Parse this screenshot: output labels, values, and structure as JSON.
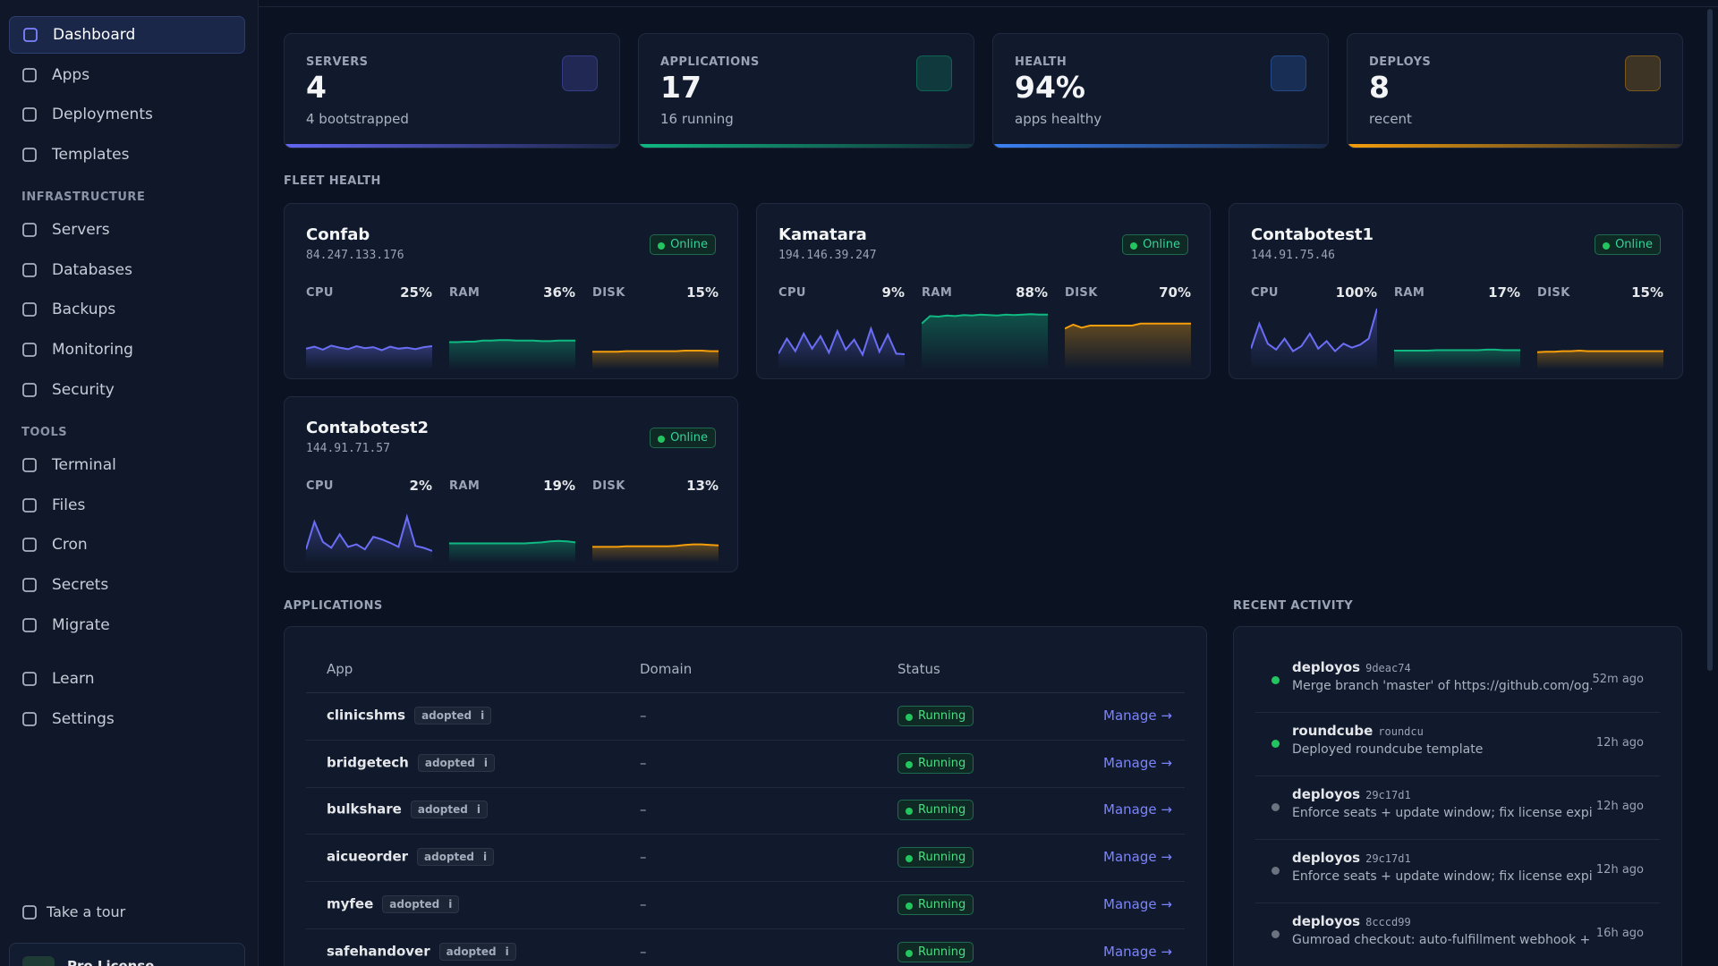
{
  "sidebar": {
    "nav": [
      "Dashboard",
      "Apps",
      "Deployments",
      "Templates"
    ],
    "sections": [
      {
        "title": "INFRASTRUCTURE",
        "items": [
          "Servers",
          "Databases",
          "Backups",
          "Monitoring",
          "Security"
        ]
      },
      {
        "title": "TOOLS",
        "items": [
          "Terminal",
          "Files",
          "Cron",
          "Secrets",
          "Migrate"
        ]
      }
    ],
    "bottom": [
      "Learn",
      "Settings"
    ],
    "tour": "Take a tour",
    "license": "Pro License"
  },
  "stats": [
    {
      "label": "SERVERS",
      "value": "4",
      "sub": "4 bootstrapped",
      "color": "#6366f1"
    },
    {
      "label": "APPLICATIONS",
      "value": "17",
      "sub": "16 running",
      "color": "#10b981"
    },
    {
      "label": "HEALTH",
      "value": "94%",
      "sub": "apps healthy",
      "color": "#3b82f6"
    },
    {
      "label": "DEPLOYS",
      "value": "8",
      "sub": "recent",
      "color": "#f59e0b"
    }
  ],
  "fleet": {
    "title": "FLEET HEALTH",
    "servers": [
      {
        "name": "Confab",
        "ip": "84.247.133.176",
        "status": "Online",
        "metrics": [
          {
            "label": "CPU",
            "value": "25%",
            "history": [
              20,
              24,
              18,
              26,
              22,
              19,
              25,
              21,
              23,
              17,
              24,
              20,
              22,
              19,
              23,
              25
            ]
          },
          {
            "label": "RAM",
            "value": "36%",
            "history": [
              33,
              33,
              34,
              34,
              36,
              36,
              37,
              37,
              36,
              36,
              36,
              35,
              35,
              36,
              36,
              36
            ]
          },
          {
            "label": "DISK",
            "value": "15%",
            "history": [
              14,
              14,
              14,
              14,
              15,
              15,
              15,
              15,
              15,
              15,
              15,
              16,
              16,
              16,
              15,
              15
            ]
          }
        ]
      },
      {
        "name": "Kamatara",
        "ip": "194.146.39.247",
        "status": "Online",
        "metrics": [
          {
            "label": "CPU",
            "value": "9%",
            "history": [
              10,
              40,
              15,
              50,
              20,
              45,
              12,
              55,
              18,
              38,
              8,
              60,
              14,
              48,
              10,
              9
            ]
          },
          {
            "label": "RAM",
            "value": "88%",
            "history": [
              70,
              85,
              84,
              86,
              85,
              87,
              86,
              88,
              87,
              86,
              88,
              87,
              88,
              89,
              88,
              88
            ]
          },
          {
            "label": "DISK",
            "value": "70%",
            "history": [
              60,
              68,
              62,
              66,
              66,
              66,
              66,
              66,
              66,
              70,
              70,
              70,
              70,
              70,
              70,
              70
            ]
          }
        ]
      },
      {
        "name": "Contabotest1",
        "ip": "144.91.75.46",
        "status": "Online",
        "metrics": [
          {
            "label": "CPU",
            "value": "100%",
            "history": [
              20,
              70,
              30,
              18,
              40,
              15,
              25,
              50,
              20,
              35,
              15,
              30,
              22,
              28,
              40,
              100
            ]
          },
          {
            "label": "RAM",
            "value": "17%",
            "history": [
              16,
              16,
              16,
              16,
              16,
              17,
              17,
              17,
              17,
              17,
              17,
              18,
              18,
              17,
              17,
              17
            ]
          },
          {
            "label": "DISK",
            "value": "15%",
            "history": [
              13,
              14,
              14,
              15,
              15,
              16,
              15,
              15,
              15,
              15,
              15,
              15,
              15,
              15,
              15,
              15
            ]
          }
        ]
      },
      {
        "name": "Contabotest2",
        "ip": "144.91.71.57",
        "status": "Online",
        "metrics": [
          {
            "label": "CPU",
            "value": "2%",
            "history": [
              5,
              60,
              20,
              8,
              35,
              10,
              15,
              5,
              30,
              25,
              18,
              10,
              70,
              12,
              8,
              2
            ]
          },
          {
            "label": "RAM",
            "value": "19%",
            "history": [
              17,
              17,
              17,
              17,
              17,
              17,
              17,
              17,
              17,
              17,
              18,
              19,
              21,
              22,
              21,
              19
            ]
          },
          {
            "label": "DISK",
            "value": "13%",
            "history": [
              10,
              10,
              10,
              10,
              11,
              11,
              11,
              11,
              11,
              11,
              12,
              14,
              15,
              15,
              14,
              13
            ]
          }
        ]
      }
    ],
    "colors": [
      "#6b6ef5",
      "#10b981",
      "#f59e0b"
    ]
  },
  "applications": {
    "title": "APPLICATIONS",
    "columns": [
      "App",
      "Domain",
      "Status"
    ],
    "rows": [
      {
        "app": "clinicshms",
        "tag": "adopted",
        "info": "i",
        "domain": "–",
        "status": "Running",
        "action": "Manage →"
      },
      {
        "app": "bridgetech",
        "tag": "adopted",
        "info": "i",
        "domain": "–",
        "status": "Running",
        "action": "Manage →"
      },
      {
        "app": "bulkshare",
        "tag": "adopted",
        "info": "i",
        "domain": "–",
        "status": "Running",
        "action": "Manage →"
      },
      {
        "app": "aicueorder",
        "tag": "adopted",
        "info": "i",
        "domain": "–",
        "status": "Running",
        "action": "Manage →"
      },
      {
        "app": "myfee",
        "tag": "adopted",
        "info": "i",
        "domain": "–",
        "status": "Running",
        "action": "Manage →"
      },
      {
        "app": "safehandover",
        "tag": "adopted",
        "info": "i",
        "domain": "–",
        "status": "Running",
        "action": "Manage →"
      }
    ]
  },
  "activity": {
    "title": "RECENT ACTIVITY",
    "items": [
      {
        "name": "deployos",
        "ref": "9deac74",
        "message": "Merge branch 'master' of https://github.com/og...",
        "time": "52m ago",
        "dot": "#22c55e"
      },
      {
        "name": "roundcube",
        "ref": "roundcu",
        "message": "Deployed roundcube template",
        "time": "12h ago",
        "dot": "#22c55e"
      },
      {
        "name": "deployos",
        "ref": "29c17d1",
        "message": "Enforce seats + update window; fix license expiry...",
        "time": "12h ago",
        "dot": "#6b7280"
      },
      {
        "name": "deployos",
        "ref": "29c17d1",
        "message": "Enforce seats + update window; fix license expiry...",
        "time": "12h ago",
        "dot": "#6b7280"
      },
      {
        "name": "deployos",
        "ref": "8cccd99",
        "message": "Gumroad checkout: auto-fulfillment webhook + li...",
        "time": "16h ago",
        "dot": "#6b7280"
      }
    ]
  }
}
